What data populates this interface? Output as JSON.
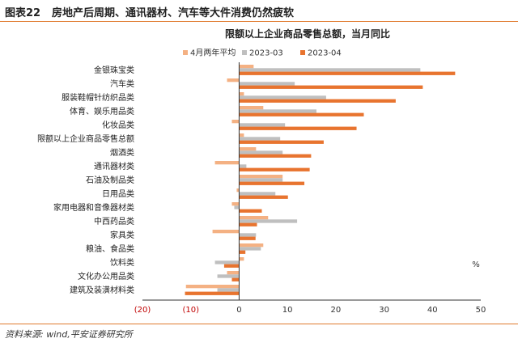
{
  "figure": {
    "number": "图表22",
    "title": "房地产后周期、通讯器材、汽车等大件消费仍然疲软",
    "source": "资料来源: wind,平安证券研究所"
  },
  "chart_data": {
    "type": "bar",
    "orientation": "horizontal",
    "title": "限额以上企业商品零售总额，当月同比",
    "unit_label": "%",
    "xlabel": "",
    "ylabel": "",
    "xlim": [
      -20,
      50
    ],
    "x_ticks": [
      -20,
      -10,
      0,
      10,
      20,
      30,
      40,
      50
    ],
    "x_tick_labels": [
      "(20)",
      "(10)",
      "0",
      "10",
      "20",
      "30",
      "40",
      "50"
    ],
    "legend_position": "top",
    "grid": false,
    "categories": [
      "金银珠宝类",
      "汽车类",
      "服装鞋帽针纺织品类",
      "体育、娱乐用品类",
      "化妆品类",
      "限额以上企业商品零售总额",
      "烟酒类",
      "通讯器材类",
      "石油及制品类",
      "日用品类",
      "家用电器和音像器材类",
      "中西药品类",
      "家具类",
      "粮油、食品类",
      "饮料类",
      "文化办公用品类",
      "建筑及装潢材料类"
    ],
    "series": [
      {
        "name": "4月两年平均",
        "color": "#f4b183",
        "values": [
          3.0,
          -2.5,
          1.0,
          5.0,
          -1.5,
          1.0,
          3.5,
          -5.0,
          9.0,
          -0.5,
          -1.5,
          6.0,
          -5.5,
          5.0,
          1.0,
          -2.5,
          -11.0
        ]
      },
      {
        "name": "2023-03",
        "color": "#bfbfbf",
        "values": [
          37.5,
          11.5,
          18.0,
          16.0,
          9.5,
          8.5,
          9.0,
          1.5,
          9.0,
          7.5,
          -1.0,
          12.0,
          3.5,
          4.5,
          -5.0,
          -4.5,
          -4.5
        ]
      },
      {
        "name": "2023-04",
        "color": "#e8742f",
        "values": [
          44.7,
          38.0,
          32.4,
          25.8,
          24.3,
          17.5,
          14.9,
          14.6,
          13.5,
          10.1,
          4.7,
          3.7,
          3.4,
          1.3,
          -3.1,
          -1.5,
          -11.2
        ]
      }
    ]
  }
}
